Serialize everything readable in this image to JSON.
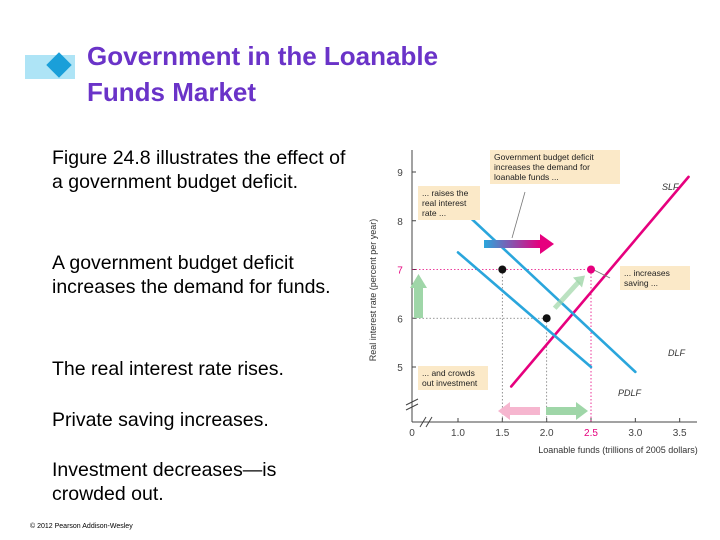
{
  "slide": {
    "title_line1": "Government in the Loanable",
    "title_line2": "Funds Market",
    "bullets": [
      "Figure 24.8 illustrates the effect of a government budget deficit.",
      "A government budget deficit increases the demand for funds.",
      "The real interest rate rises.",
      "Private saving increases.",
      "Investment decreases—is crowded out."
    ],
    "copyright": "© 2012 Pearson Addison-Wesley"
  },
  "colors": {
    "title": "#6a33c8",
    "dlf": "#2aa6dc",
    "slf": "#e6007e",
    "annotation_bg": "#fbe9c8",
    "arrow_green": "#9fd6a8",
    "arrow_pink": "#f6b6cf",
    "deco_light_blue": "#aee4f6",
    "deco_blue": "#1a9fd9"
  },
  "chart_data": {
    "type": "line",
    "xlabel": "Loanable funds (trillions of 2005 dollars)",
    "ylabel": "Real interest rate (percent per year)",
    "x_ticks": [
      "0",
      "1.0",
      "1.5",
      "2.0",
      "2.5",
      "3.0",
      "3.5"
    ],
    "y_ticks": [
      "5",
      "6",
      "7",
      "8",
      "9"
    ],
    "xlim": [
      1.0,
      3.5
    ],
    "ylim": [
      5,
      9
    ],
    "series": [
      {
        "name": "SLF",
        "points": [
          [
            1.6,
            4.6
          ],
          [
            3.6,
            8.9
          ]
        ]
      },
      {
        "name": "DLF",
        "points": [
          [
            1.0,
            8.3
          ],
          [
            3.0,
            4.9
          ]
        ]
      },
      {
        "name": "PDLF",
        "points": [
          [
            1.0,
            7.35
          ],
          [
            2.5,
            5.0
          ]
        ]
      }
    ],
    "equilibria": [
      {
        "x": 2.0,
        "y": 6
      },
      {
        "x": 1.5,
        "y": 7
      },
      {
        "x": 2.5,
        "y": 7
      }
    ],
    "annotations": {
      "demand_increase": "Government budget deficit increases the demand for loanable funds ...",
      "rate_rise": "... raises the real interest rate ...",
      "saving_increase": "... increases saving ...",
      "crowding_out": "... and crowds out investment"
    },
    "highlight_ticks": {
      "rate": "7",
      "funds": "2.5"
    }
  }
}
